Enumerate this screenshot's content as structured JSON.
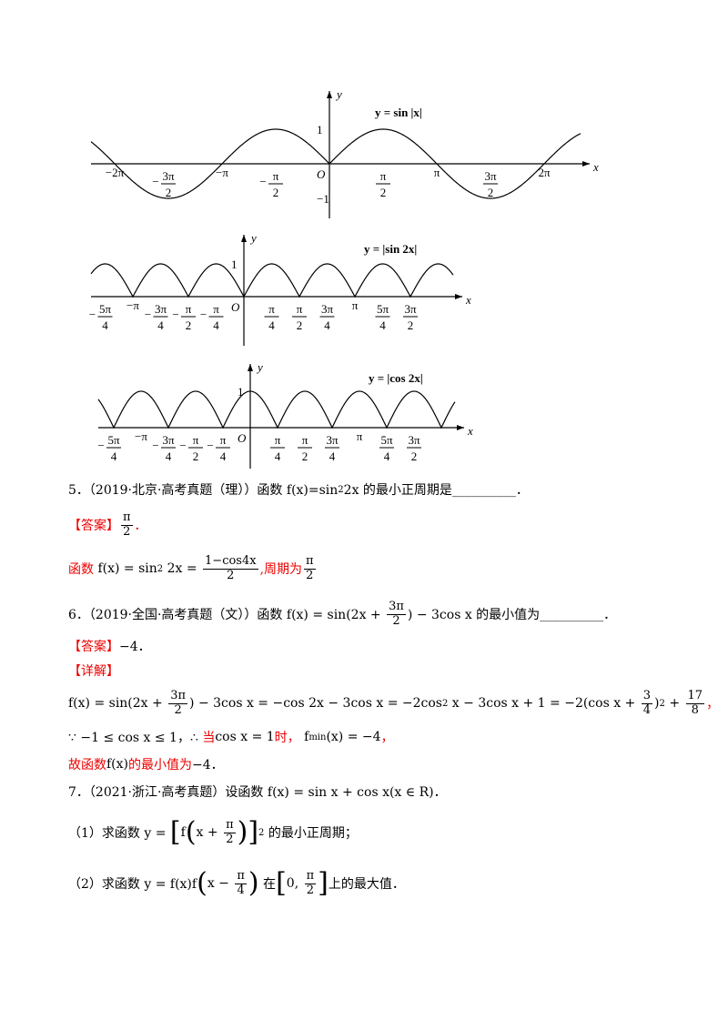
{
  "graphs": [
    {
      "function": "y = sin |x|",
      "y_axis": "y",
      "x_axis": "x",
      "origin": "O",
      "y_ticks": [
        "1",
        "−1"
      ],
      "x_ticks": [
        "−2π",
        {
          "sign": "−",
          "num": "3π",
          "den": "2"
        },
        "−π",
        {
          "sign": "−",
          "num": "π",
          "den": "2"
        },
        {
          "num": "π",
          "den": "2"
        },
        "π",
        {
          "num": "3π",
          "den": "2"
        },
        "2π"
      ]
    },
    {
      "function": "y = |sin 2x|",
      "y_axis": "y",
      "x_axis": "x",
      "origin": "O",
      "y_ticks": [
        "1"
      ],
      "x_ticks": [
        {
          "sign": "−",
          "num": "5π",
          "den": "4"
        },
        "−π",
        {
          "sign": "−",
          "num": "3π",
          "den": "4"
        },
        {
          "sign": "−",
          "num": "π",
          "den": "2"
        },
        {
          "sign": "−",
          "num": "π",
          "den": "4"
        },
        {
          "num": "π",
          "den": "4"
        },
        {
          "num": "π",
          "den": "2"
        },
        {
          "num": "3π",
          "den": "4"
        },
        "π",
        {
          "num": "5π",
          "den": "4"
        },
        {
          "num": "3π",
          "den": "2"
        }
      ]
    },
    {
      "function": "y = |cos 2x|",
      "y_axis": "y",
      "x_axis": "x",
      "origin": "O",
      "y_ticks": [
        "1"
      ],
      "x_ticks": [
        {
          "sign": "−",
          "num": "5π",
          "den": "4"
        },
        "−π",
        {
          "sign": "−",
          "num": "3π",
          "den": "4"
        },
        {
          "sign": "−",
          "num": "π",
          "den": "2"
        },
        {
          "sign": "−",
          "num": "π",
          "den": "4"
        },
        {
          "num": "π",
          "den": "4"
        },
        {
          "num": "π",
          "den": "2"
        },
        {
          "num": "3π",
          "den": "4"
        },
        "π",
        {
          "num": "5π",
          "den": "4"
        },
        {
          "num": "3π",
          "den": "2"
        }
      ]
    }
  ],
  "lines": [
    {
      "tokens": [
        "5．（2019·北京·高考真题（理））函数 f(x)=sin",
        {
          "sup": "2"
        },
        "2x 的最小正周期是__________．"
      ]
    },
    {
      "tokens": [
        {
          "red": "【答案】"
        },
        {
          "frac": [
            "π",
            "2"
          ]
        },
        {
          "red": "．"
        }
      ]
    },
    {
      "tokens": [
        {
          "red": "函数 "
        },
        "f(x) = sin",
        {
          "sup": "2"
        },
        " 2x = ",
        {
          "frac": [
            "1−cos4x",
            "2"
          ]
        },
        {
          "red": ",周期为"
        },
        {
          "frac": [
            "π",
            "2"
          ]
        }
      ]
    },
    {
      "tokens": [
        "6．（2019·全国·高考真题（文））函数 f(x) = sin(2x + ",
        {
          "frac": [
            "3π",
            "2"
          ]
        },
        ") − 3cos x 的最小值为__________．"
      ]
    },
    {
      "tokens": [
        {
          "red": "【答案】"
        },
        "−4．"
      ]
    },
    {
      "tokens": [
        {
          "red": "【详解】"
        }
      ]
    },
    {
      "tokens": [
        "f(x) = sin(2x + ",
        {
          "frac": [
            "3π",
            "2"
          ]
        },
        ") − 3cos x = −cos 2x − 3cos x = −2cos",
        {
          "sup": "2"
        },
        " x − 3cos x + 1 = −2(cos x + ",
        {
          "frac": [
            "3",
            "4"
          ]
        },
        ")",
        {
          "sup": "2"
        },
        " + ",
        {
          "frac": [
            "17",
            "8"
          ]
        },
        {
          "red": "，"
        }
      ]
    },
    {
      "tokens": [
        "∵ −1 ≤ cos x ≤ 1，∴ ",
        {
          "red": "当"
        },
        "cos x = 1",
        {
          "red": "时，"
        },
        " f",
        {
          "sub": "min"
        },
        "(x) = −4",
        {
          "red": "，"
        }
      ]
    },
    {
      "tokens": [
        {
          "red": "故函数"
        },
        "f(x)",
        {
          "red": "的最小值为"
        },
        "−4．"
      ]
    },
    {
      "tokens": [
        "7．（2021·浙江·高考真题）设函数 f(x) = sin x + cos x(x ∈ R)．"
      ]
    },
    {
      "tokens": [
        "（1）求函数 y = ",
        {
          "big": "["
        },
        "f",
        {
          "big": "("
        },
        "x + ",
        {
          "frac": [
            "π",
            "2"
          ]
        },
        {
          "big": ")"
        },
        {
          "big": "]"
        },
        {
          "sup": "2"
        },
        " 的最小正周期；"
      ]
    },
    {
      "tokens": [
        "（2）求函数 y = f(x)f",
        {
          "big": "("
        },
        "x − ",
        {
          "frac": [
            "π",
            "4"
          ]
        },
        {
          "big": ")"
        },
        " 在",
        {
          "big": "["
        },
        "0, ",
        {
          "frac": [
            "π",
            "2"
          ]
        },
        {
          "big": "]"
        },
        "上的最大值．"
      ]
    }
  ]
}
